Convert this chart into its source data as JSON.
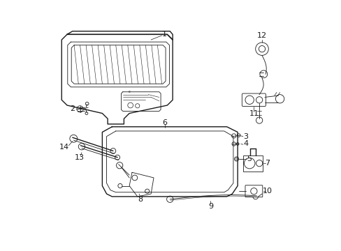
{
  "bg_color": "#ffffff",
  "line_color": "#1a1a1a",
  "fig_width": 4.89,
  "fig_height": 3.6,
  "dpi": 100,
  "label_fs": 7,
  "thin": 0.6,
  "med": 1.0,
  "thick": 1.4
}
